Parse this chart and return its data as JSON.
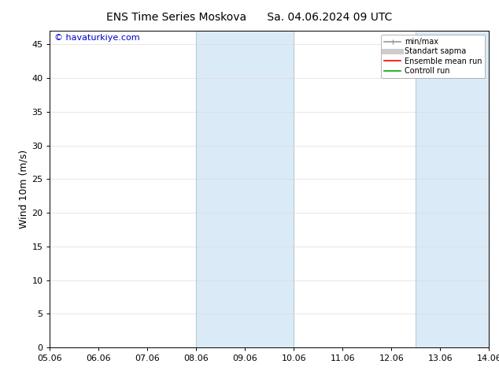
{
  "title_left": "ENS Time Series Moskova",
  "title_right": "Sa. 04.06.2024 09 UTC",
  "ylabel": "Wind 10m (m/s)",
  "xlabel": "",
  "xlim": [
    0,
    9
  ],
  "ylim": [
    0,
    47
  ],
  "yticks": [
    0,
    5,
    10,
    15,
    20,
    25,
    30,
    35,
    40,
    45
  ],
  "xtick_positions": [
    0,
    1,
    2,
    3,
    4,
    5,
    6,
    7,
    8,
    9
  ],
  "xtick_labels": [
    "05.06",
    "06.06",
    "07.06",
    "08.06",
    "09.06",
    "10.06",
    "11.06",
    "12.06",
    "13.06",
    "14.06"
  ],
  "background_color": "#ffffff",
  "shaded_regions": [
    {
      "xstart": 3.0,
      "xend": 5.0,
      "color": "#daeaf6"
    },
    {
      "xstart": 7.5,
      "xend": 9.0,
      "color": "#daeaf6"
    }
  ],
  "vertical_lines": [
    {
      "x": 3.0,
      "color": "#b0ccdf",
      "lw": 0.8
    },
    {
      "x": 5.0,
      "color": "#b0ccdf",
      "lw": 0.8
    },
    {
      "x": 7.5,
      "color": "#b0ccdf",
      "lw": 0.8
    },
    {
      "x": 9.0,
      "color": "#b0ccdf",
      "lw": 0.8
    }
  ],
  "watermark_text": "© havaturkiye.com",
  "watermark_color": "#0000cc",
  "legend_entries": [
    {
      "label": "min/max",
      "color": "#999999",
      "lw": 1.2,
      "linestyle": "-"
    },
    {
      "label": "Standart sapma",
      "color": "#cccccc",
      "lw": 5,
      "linestyle": "-"
    },
    {
      "label": "Ensemble mean run",
      "color": "#ff0000",
      "lw": 1.2,
      "linestyle": "-"
    },
    {
      "label": "Controll run",
      "color": "#00aa00",
      "lw": 1.2,
      "linestyle": "-"
    }
  ],
  "title_fontsize": 10,
  "axis_label_fontsize": 9,
  "tick_fontsize": 8,
  "watermark_fontsize": 8,
  "legend_fontsize": 7
}
